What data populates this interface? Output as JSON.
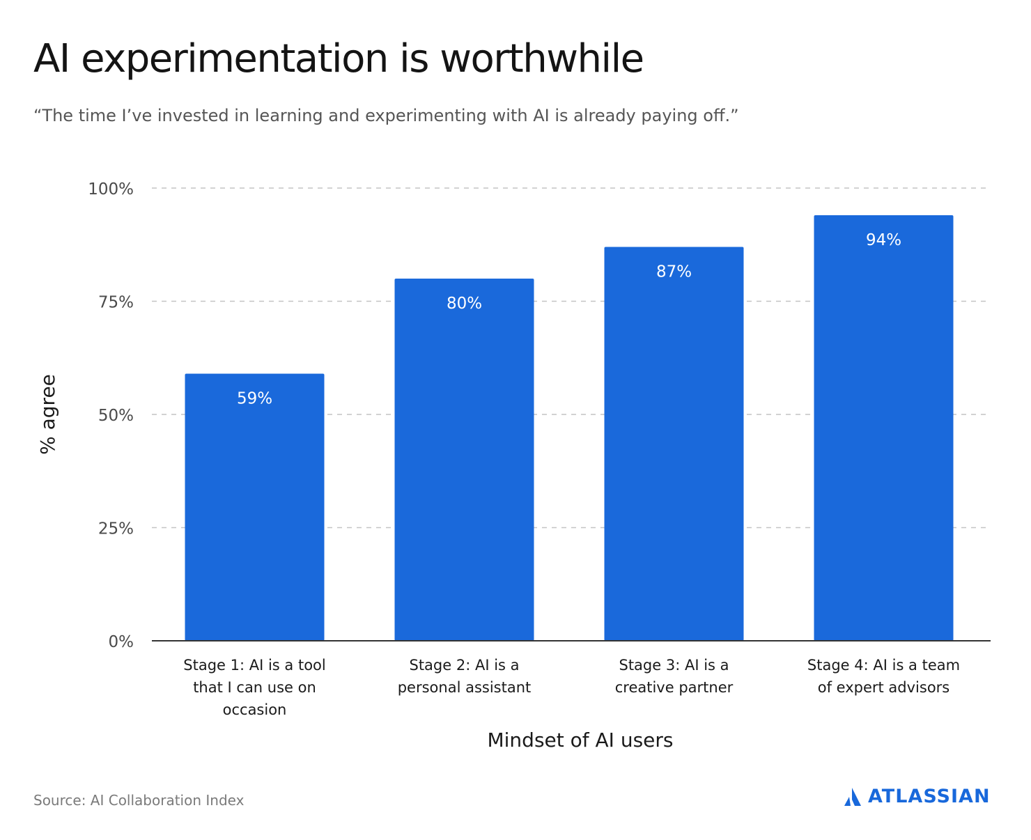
{
  "title": "AI experimentation is worthwhile",
  "subtitle": "“The time I’ve invested in learning and experimenting with AI is already paying off.”",
  "source": "Source: AI Collaboration Index",
  "logo_text": "ATLASSIAN",
  "colors": {
    "bar": "#1a69db",
    "grid": "#c4c4c4",
    "axis": "#333333",
    "brand": "#1868db"
  },
  "chart_data": {
    "type": "bar",
    "title": "AI experimentation is worthwhile",
    "xlabel": "Mindset of AI users",
    "ylabel": "% agree",
    "ylim": [
      0,
      100
    ],
    "yticks": [
      0,
      25,
      50,
      75,
      100
    ],
    "ytick_labels": [
      "0%",
      "25%",
      "50%",
      "75%",
      "100%"
    ],
    "grid": true,
    "categories": [
      [
        "Stage 1: AI is a tool",
        "that I can use on",
        "occasion"
      ],
      [
        "Stage 2: AI is a",
        "personal assistant"
      ],
      [
        "Stage 3: AI is a",
        "creative partner"
      ],
      [
        "Stage 4: AI is a team",
        "of expert advisors"
      ]
    ],
    "values": [
      59,
      80,
      87,
      94
    ],
    "data_labels": [
      "59%",
      "80%",
      "87%",
      "94%"
    ]
  }
}
